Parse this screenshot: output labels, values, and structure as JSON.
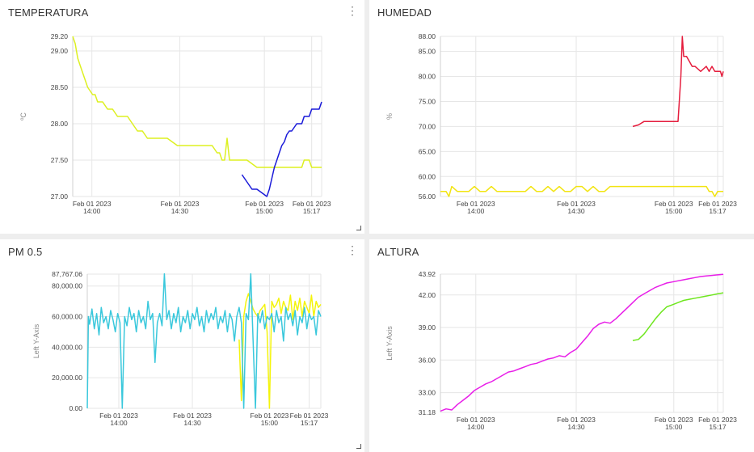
{
  "panels": [
    {
      "title": "TEMPERATURA",
      "has_menu": true,
      "has_resize": true
    },
    {
      "title": "HUMEDAD",
      "has_menu": false,
      "has_resize": false
    },
    {
      "title": "PM 0.5",
      "has_menu": true,
      "has_resize": true
    },
    {
      "title": "ALTURA",
      "has_menu": false,
      "has_resize": false
    }
  ],
  "menu_icon": "kebab-vertical-icon",
  "resize_icon": "resize-corner-icon",
  "chart_data": [
    {
      "type": "line",
      "title": "TEMPERATURA",
      "ylabel": "ºC",
      "ylim": [
        27.0,
        29.2
      ],
      "ytick_labels": [
        "29.20",
        "29.00",
        "28.50",
        "28.00",
        "27.50",
        "27.00"
      ],
      "yticks": [
        29.2,
        29.0,
        28.5,
        28.0,
        27.5,
        27.0
      ],
      "xlim": [
        0,
        100
      ],
      "xtick_positions": [
        7.7,
        43,
        77,
        96
      ],
      "xtick_labels": [
        [
          "Feb 01 2023",
          "14:00"
        ],
        [
          "Feb 01 2023",
          "14:30"
        ],
        [
          "Feb 01 2023",
          "15:00"
        ],
        [
          "Feb 01 2023",
          "15:17"
        ]
      ],
      "grid": true,
      "series": [
        {
          "color": "#ddf021",
          "x": [
            0,
            1,
            1.5,
            2,
            3,
            4,
            5,
            6,
            7,
            8,
            9,
            10,
            12,
            14,
            16,
            18,
            20,
            22,
            24,
            26,
            28,
            30,
            34,
            38,
            42,
            46,
            50,
            54,
            56,
            58,
            59,
            60,
            61,
            62,
            63,
            64,
            65,
            66,
            68,
            70,
            72,
            74,
            76,
            78,
            80,
            82,
            84,
            86,
            88,
            90,
            92,
            93,
            94,
            95,
            96,
            98,
            100
          ],
          "y": [
            29.2,
            29.1,
            29.0,
            28.9,
            28.8,
            28.7,
            28.6,
            28.5,
            28.45,
            28.4,
            28.4,
            28.3,
            28.3,
            28.2,
            28.2,
            28.1,
            28.1,
            28.1,
            28.0,
            27.9,
            27.9,
            27.8,
            27.8,
            27.8,
            27.7,
            27.7,
            27.7,
            27.7,
            27.7,
            27.6,
            27.6,
            27.5,
            27.5,
            27.8,
            27.5,
            27.5,
            27.5,
            27.5,
            27.5,
            27.5,
            27.45,
            27.4,
            27.4,
            27.4,
            27.4,
            27.4,
            27.4,
            27.4,
            27.4,
            27.4,
            27.4,
            27.5,
            27.5,
            27.5,
            27.4,
            27.4,
            27.4
          ]
        },
        {
          "color": "#1a1ad9",
          "x": [
            68,
            69,
            70,
            71,
            72,
            74,
            76,
            78,
            79,
            80,
            81,
            82,
            83,
            84,
            85,
            86,
            87,
            88,
            89,
            90,
            91,
            92,
            93,
            94,
            95,
            96,
            97,
            98,
            99,
            100
          ],
          "y": [
            27.3,
            27.25,
            27.2,
            27.15,
            27.1,
            27.1,
            27.05,
            27.0,
            27.1,
            27.25,
            27.4,
            27.5,
            27.6,
            27.7,
            27.75,
            27.85,
            27.9,
            27.9,
            27.95,
            28.0,
            28.0,
            28.0,
            28.1,
            28.1,
            28.1,
            28.2,
            28.2,
            28.2,
            28.2,
            28.3
          ]
        }
      ]
    },
    {
      "type": "line",
      "title": "HUMEDAD",
      "ylabel": "%",
      "ylim": [
        56.0,
        88.0
      ],
      "ytick_labels": [
        "88.00",
        "85.00",
        "80.00",
        "75.00",
        "70.00",
        "65.00",
        "60.00",
        "56.00"
      ],
      "yticks": [
        88,
        85,
        80,
        75,
        70,
        65,
        60,
        56
      ],
      "xlim": [
        0,
        100
      ],
      "xtick_positions": [
        12.5,
        48,
        82.5,
        98
      ],
      "xtick_labels": [
        [
          "Feb 01 2023",
          "14:00"
        ],
        [
          "Feb 01 2023",
          "14:30"
        ],
        [
          "Feb 01 2023",
          "15:00"
        ],
        [
          "Feb 01 2023",
          "15:17"
        ]
      ],
      "grid": true,
      "series": [
        {
          "color": "#e51d3d",
          "x": [
            68,
            70,
            72,
            74,
            76,
            78,
            80,
            82,
            84,
            85,
            85.5,
            86,
            87,
            88,
            89,
            90,
            92,
            94,
            95,
            96,
            97,
            98,
            99,
            99.5,
            100
          ],
          "y": [
            70,
            70.3,
            71,
            71,
            71,
            71,
            71,
            71,
            71,
            80,
            88,
            84,
            84,
            83,
            82,
            82,
            81,
            82,
            81,
            82,
            81,
            81,
            81,
            80,
            81
          ]
        },
        {
          "color": "#f2e40f",
          "x": [
            0,
            2,
            3,
            4,
            6,
            8,
            10,
            12,
            14,
            16,
            18,
            20,
            22,
            24,
            26,
            28,
            30,
            32,
            34,
            36,
            38,
            40,
            42,
            44,
            46,
            48,
            50,
            52,
            54,
            56,
            58,
            60,
            62,
            64,
            66,
            68,
            70,
            72,
            74,
            76,
            78,
            80,
            82,
            84,
            86,
            88,
            90,
            92,
            94,
            95,
            96,
            97,
            98,
            99,
            100
          ],
          "y": [
            57,
            57,
            56,
            58,
            57,
            57,
            57,
            58,
            57,
            57,
            58,
            57,
            57,
            57,
            57,
            57,
            57,
            58,
            57,
            57,
            58,
            57,
            58,
            57,
            57,
            58,
            58,
            57,
            58,
            57,
            57,
            58,
            58,
            58,
            58,
            58,
            58,
            58,
            58,
            58,
            58,
            58,
            58,
            58,
            58,
            58,
            58,
            58,
            58,
            57,
            57,
            56,
            57,
            57,
            57
          ]
        }
      ]
    },
    {
      "type": "line",
      "title": "PM 0.5",
      "ylabel": "Left Y-Axis",
      "ylim": [
        0,
        87767.06
      ],
      "ytick_labels": [
        "87,767.06",
        "80,000.00",
        "60,000.00",
        "40,000.00",
        "20,000.00",
        "0.00"
      ],
      "yticks": [
        87767.06,
        80000,
        60000,
        40000,
        20000,
        0
      ],
      "xlim": [
        0,
        100
      ],
      "xtick_positions": [
        13.5,
        45,
        78,
        95
      ],
      "xtick_labels": [
        [
          "Feb 01 2023",
          "14:00"
        ],
        [
          "Feb 01 2023",
          "14:30"
        ],
        [
          "Feb 01 2023",
          "15:00"
        ],
        [
          "Feb 01 2023",
          "15:17"
        ]
      ],
      "grid": true,
      "series": [
        {
          "color": "#f4f40c",
          "x": [
            65,
            66,
            67,
            68,
            69,
            70,
            71,
            72,
            73,
            74,
            75,
            76,
            77,
            78,
            79,
            80,
            81,
            82,
            83,
            84,
            85,
            86,
            87,
            88,
            89,
            90,
            91,
            92,
            93,
            94,
            95,
            96,
            97,
            98,
            99,
            100
          ],
          "y": [
            45000,
            5000,
            60000,
            70000,
            75000,
            70000,
            65000,
            62000,
            60000,
            64000,
            66000,
            68000,
            50000,
            0,
            70000,
            66000,
            68000,
            72000,
            62000,
            70000,
            66000,
            64000,
            74000,
            58000,
            70000,
            64000,
            72000,
            60000,
            70000,
            66000,
            62000,
            74000,
            60000,
            70000,
            66000,
            68000
          ]
        },
        {
          "color": "#3ac8dc",
          "x": [
            0,
            0.5,
            1,
            2,
            3,
            4,
            5,
            6,
            7,
            8,
            9,
            10,
            11,
            12,
            13,
            14,
            15,
            16,
            17,
            18,
            19,
            20,
            21,
            22,
            23,
            24,
            25,
            26,
            27,
            28,
            29,
            30,
            31,
            32,
            33,
            34,
            35,
            36,
            37,
            38,
            39,
            40,
            41,
            42,
            43,
            44,
            45,
            46,
            47,
            48,
            49,
            50,
            51,
            52,
            53,
            54,
            55,
            56,
            57,
            58,
            59,
            60,
            61,
            62,
            63,
            64,
            65,
            66,
            67,
            68,
            69,
            70,
            71,
            72,
            73,
            74,
            75,
            76,
            77,
            78,
            79,
            80,
            81,
            82,
            83,
            84,
            85,
            86,
            87,
            88,
            89,
            90,
            91,
            92,
            93,
            94,
            95,
            96,
            97,
            98,
            99,
            100
          ],
          "y": [
            0,
            60000,
            55000,
            65000,
            52000,
            62000,
            48000,
            66000,
            56000,
            60000,
            52000,
            64000,
            58000,
            50000,
            62000,
            56000,
            0,
            60000,
            54000,
            66000,
            58000,
            62000,
            50000,
            64000,
            56000,
            60000,
            52000,
            70000,
            58000,
            62000,
            30000,
            56000,
            62000,
            54000,
            88000,
            58000,
            64000,
            52000,
            62000,
            56000,
            66000,
            50000,
            60000,
            56000,
            64000,
            52000,
            62000,
            58000,
            66000,
            54000,
            60000,
            50000,
            64000,
            56000,
            62000,
            58000,
            66000,
            52000,
            60000,
            56000,
            64000,
            50000,
            62000,
            58000,
            44000,
            60000,
            66000,
            56000,
            0,
            62000,
            58000,
            88000,
            44000,
            0,
            62000,
            56000,
            64000,
            52000,
            60000,
            58000,
            62000,
            50000,
            64000,
            56000,
            60000,
            44000,
            66000,
            58000,
            62000,
            54000,
            64000,
            48000,
            60000,
            56000,
            66000,
            52000,
            62000,
            58000,
            60000,
            48000,
            64000,
            60000
          ]
        }
      ]
    },
    {
      "type": "line",
      "title": "ALTURA",
      "ylabel": "Left Y-Axis",
      "ylim": [
        31.18,
        43.92
      ],
      "ytick_labels": [
        "43.92",
        "42.00",
        "39.00",
        "36.00",
        "33.00",
        "31.18"
      ],
      "yticks": [
        43.92,
        42,
        39,
        36,
        33,
        31.18
      ],
      "xlim": [
        0,
        100
      ],
      "xtick_positions": [
        12.5,
        48,
        82.5,
        98
      ],
      "xtick_labels": [
        [
          "Feb 01 2023",
          "14:00"
        ],
        [
          "Feb 01 2023",
          "14:30"
        ],
        [
          "Feb 01 2023",
          "15:00"
        ],
        [
          "Feb 01 2023",
          "15:17"
        ]
      ],
      "grid": true,
      "series": [
        {
          "color": "#e81ee8",
          "x": [
            0,
            2,
            4,
            6,
            8,
            10,
            12,
            14,
            16,
            18,
            20,
            22,
            24,
            26,
            28,
            30,
            32,
            34,
            36,
            38,
            40,
            42,
            44,
            46,
            48,
            50,
            52,
            54,
            56,
            58,
            60,
            62,
            64,
            66,
            68,
            70,
            72,
            74,
            76,
            78,
            80,
            82,
            84,
            86,
            88,
            90,
            92,
            94,
            96,
            98,
            100
          ],
          "y": [
            31.3,
            31.5,
            31.4,
            31.9,
            32.3,
            32.7,
            33.2,
            33.5,
            33.8,
            34.0,
            34.3,
            34.6,
            34.9,
            35.0,
            35.2,
            35.4,
            35.6,
            35.7,
            35.9,
            36.1,
            36.2,
            36.4,
            36.3,
            36.7,
            37.0,
            37.6,
            38.2,
            38.9,
            39.3,
            39.5,
            39.4,
            39.8,
            40.3,
            40.8,
            41.3,
            41.8,
            42.1,
            42.4,
            42.7,
            42.9,
            43.1,
            43.2,
            43.3,
            43.4,
            43.5,
            43.6,
            43.7,
            43.75,
            43.8,
            43.85,
            43.9
          ]
        },
        {
          "color": "#6ee61e",
          "x": [
            68,
            70,
            72,
            74,
            76,
            78,
            80,
            82,
            84,
            86,
            88,
            90,
            92,
            94,
            96,
            98,
            100
          ],
          "y": [
            37.8,
            37.9,
            38.4,
            39.1,
            39.8,
            40.4,
            40.9,
            41.1,
            41.3,
            41.5,
            41.6,
            41.7,
            41.8,
            41.9,
            42.0,
            42.1,
            42.2
          ]
        }
      ]
    }
  ]
}
